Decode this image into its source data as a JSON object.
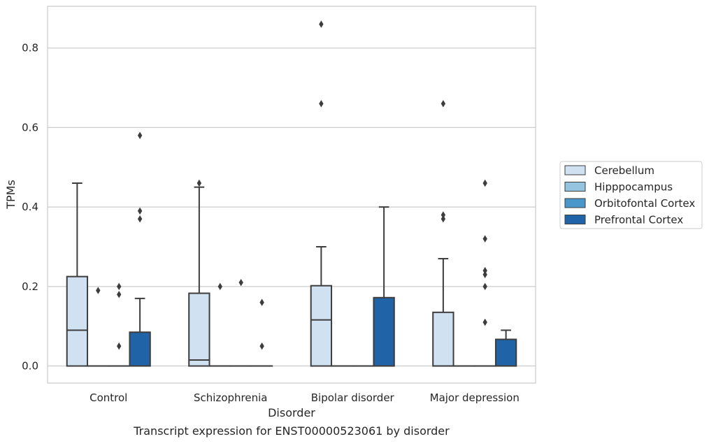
{
  "caption": "Transcript expression for ENST00000523061 by disorder",
  "chart_data": {
    "type": "boxplot",
    "title": "",
    "xlabel": "Disorder",
    "ylabel": "TPMs",
    "ylim": [
      -0.043,
      0.905
    ],
    "yticks": [
      "0.0",
      "0.2",
      "0.4",
      "0.6",
      "0.8"
    ],
    "ytick_values": [
      0.0,
      0.2,
      0.4,
      0.6,
      0.8
    ],
    "grid": "horizontal",
    "legend_position": "right",
    "categories": [
      "Control",
      "Schizophrenia",
      "Bipolar disorder",
      "Major depression"
    ],
    "series": [
      {
        "name": "Cerebellum",
        "color": "#d0e1f1",
        "boxes": [
          {
            "q1": 0.0,
            "median": 0.09,
            "q3": 0.225,
            "whisker_low": 0.0,
            "whisker_high": 0.46,
            "outliers": []
          },
          {
            "q1": 0.0,
            "median": 0.015,
            "q3": 0.183,
            "whisker_low": 0.0,
            "whisker_high": 0.45,
            "outliers": [
              0.46
            ]
          },
          {
            "q1": 0.0,
            "median": 0.116,
            "q3": 0.202,
            "whisker_low": 0.0,
            "whisker_high": 0.3,
            "outliers": [
              0.66,
              0.86
            ]
          },
          {
            "q1": 0.0,
            "median": 0.0,
            "q3": 0.135,
            "whisker_low": 0.0,
            "whisker_high": 0.27,
            "outliers": [
              0.37,
              0.38,
              0.66
            ]
          }
        ]
      },
      {
        "name": "Hipppocampus",
        "color": "#94c4df",
        "boxes": [
          {
            "q1": 0.0,
            "median": 0.0,
            "q3": 0.0,
            "whisker_low": 0.0,
            "whisker_high": 0.0,
            "outliers": [
              0.19
            ]
          },
          {
            "q1": 0.0,
            "median": 0.0,
            "q3": 0.0,
            "whisker_low": 0.0,
            "whisker_high": 0.0,
            "outliers": [
              0.2
            ]
          },
          {
            "q1": 0.0,
            "median": 0.0,
            "q3": 0.0,
            "whisker_low": 0.0,
            "whisker_high": 0.0,
            "outliers": []
          },
          {
            "q1": 0.0,
            "median": 0.0,
            "q3": 0.0,
            "whisker_low": 0.0,
            "whisker_high": 0.0,
            "outliers": []
          }
        ]
      },
      {
        "name": "Orbitofontal Cortex",
        "color": "#4a98c9",
        "boxes": [
          {
            "q1": 0.0,
            "median": 0.0,
            "q3": 0.0,
            "whisker_low": 0.0,
            "whisker_high": 0.0,
            "outliers": [
              0.05,
              0.18,
              0.2
            ]
          },
          {
            "q1": 0.0,
            "median": 0.0,
            "q3": 0.0,
            "whisker_low": 0.0,
            "whisker_high": 0.0,
            "outliers": [
              0.21
            ]
          },
          {
            "q1": 0.0,
            "median": 0.0,
            "q3": 0.0,
            "whisker_low": 0.0,
            "whisker_high": 0.0,
            "outliers": []
          },
          {
            "q1": 0.0,
            "median": 0.0,
            "q3": 0.0,
            "whisker_low": 0.0,
            "whisker_high": 0.0,
            "outliers": [
              0.11,
              0.2,
              0.23,
              0.24,
              0.32,
              0.46
            ]
          }
        ]
      },
      {
        "name": "Prefrontal Cortex",
        "color": "#2163a7",
        "boxes": [
          {
            "q1": 0.0,
            "median": 0.0,
            "q3": 0.085,
            "whisker_low": 0.0,
            "whisker_high": 0.17,
            "outliers": [
              0.37,
              0.39,
              0.58
            ]
          },
          {
            "q1": 0.0,
            "median": 0.0,
            "q3": 0.0,
            "whisker_low": 0.0,
            "whisker_high": 0.0,
            "outliers": [
              0.05,
              0.16
            ]
          },
          {
            "q1": 0.0,
            "median": 0.0,
            "q3": 0.172,
            "whisker_low": 0.0,
            "whisker_high": 0.4,
            "outliers": []
          },
          {
            "q1": 0.0,
            "median": 0.0,
            "q3": 0.067,
            "whisker_low": 0.0,
            "whisker_high": 0.09,
            "outliers": []
          }
        ]
      }
    ]
  }
}
